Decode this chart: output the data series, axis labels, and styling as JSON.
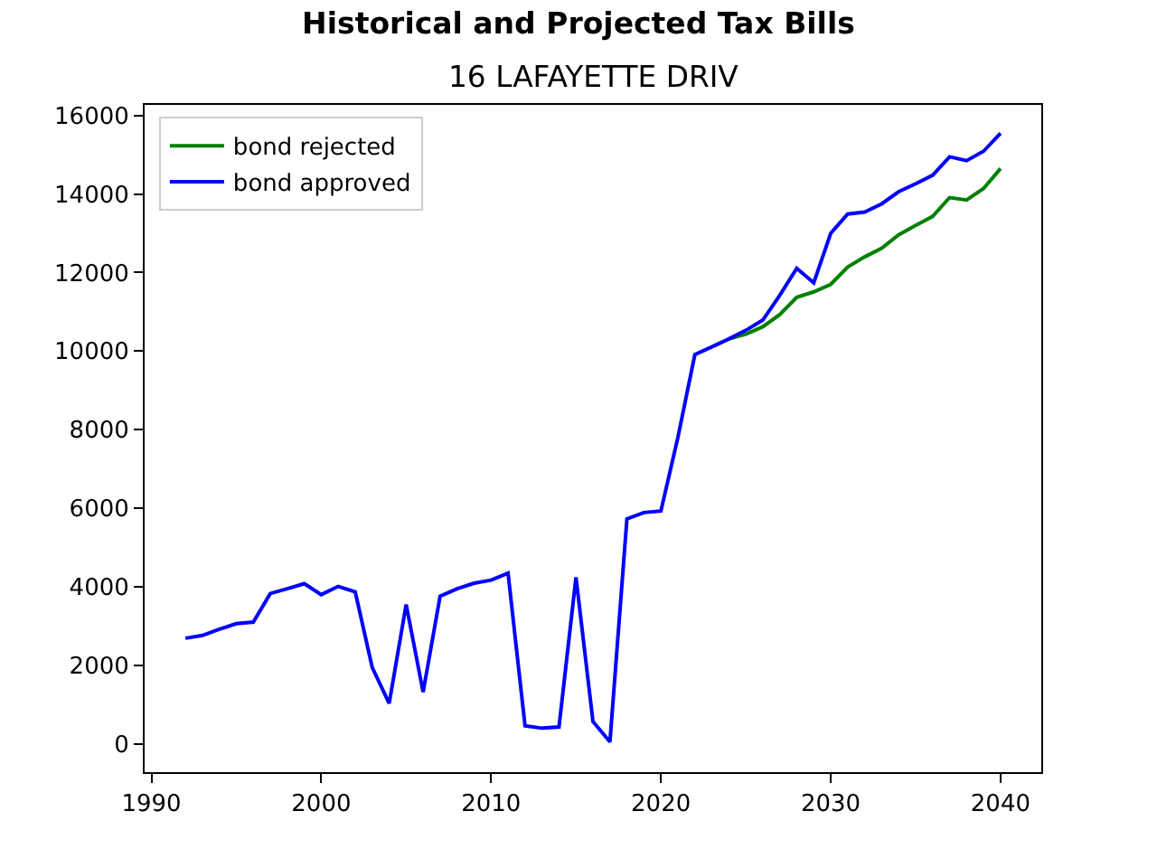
{
  "chart_data": {
    "type": "line",
    "title": "Historical and Projected Tax Bills",
    "subtitle": "16 LAFAYETTE DRIV",
    "x": [
      1992,
      1993,
      1994,
      1995,
      1996,
      1997,
      1998,
      1999,
      2000,
      2001,
      2002,
      2003,
      2004,
      2005,
      2006,
      2007,
      2008,
      2009,
      2010,
      2011,
      2012,
      2013,
      2014,
      2015,
      2016,
      2017,
      2018,
      2019,
      2020,
      2021,
      2022,
      2023,
      2024,
      2025,
      2026,
      2027,
      2028,
      2029,
      2030,
      2031,
      2032,
      2033,
      2034,
      2035,
      2036,
      2037,
      2038,
      2039,
      2040
    ],
    "series": [
      {
        "name": "bond rejected",
        "color": "#008000",
        "values": [
          null,
          null,
          null,
          null,
          null,
          null,
          null,
          null,
          null,
          null,
          null,
          null,
          null,
          null,
          null,
          null,
          null,
          null,
          null,
          null,
          null,
          null,
          null,
          null,
          null,
          null,
          null,
          null,
          null,
          null,
          null,
          null,
          10310,
          10430,
          10620,
          10930,
          11370,
          11510,
          11700,
          12140,
          12400,
          12620,
          12960,
          13200,
          13430,
          13910,
          13850,
          14140,
          14650
        ]
      },
      {
        "name": "bond approved",
        "color": "#0000ff",
        "values": [
          2690,
          2760,
          2920,
          3060,
          3100,
          3830,
          3950,
          4080,
          3800,
          4010,
          3870,
          1950,
          1030,
          3550,
          1320,
          3760,
          3950,
          4090,
          4170,
          4350,
          460,
          400,
          430,
          4240,
          570,
          50,
          5730,
          5890,
          5930,
          7800,
          9910,
          10110,
          10310,
          10530,
          10790,
          11420,
          12110,
          11740,
          13000,
          13490,
          13540,
          13750,
          14060,
          14260,
          14480,
          14950,
          14850,
          15090,
          15550
        ]
      }
    ],
    "xlim": [
      1989.6,
      2042.4
    ],
    "xticks": [
      1990,
      2000,
      2010,
      2020,
      2030,
      2040
    ],
    "ylim": [
      -720,
      16270
    ],
    "yticks": [
      0,
      2000,
      4000,
      6000,
      8000,
      10000,
      12000,
      14000,
      16000
    ],
    "legend": "top left"
  }
}
